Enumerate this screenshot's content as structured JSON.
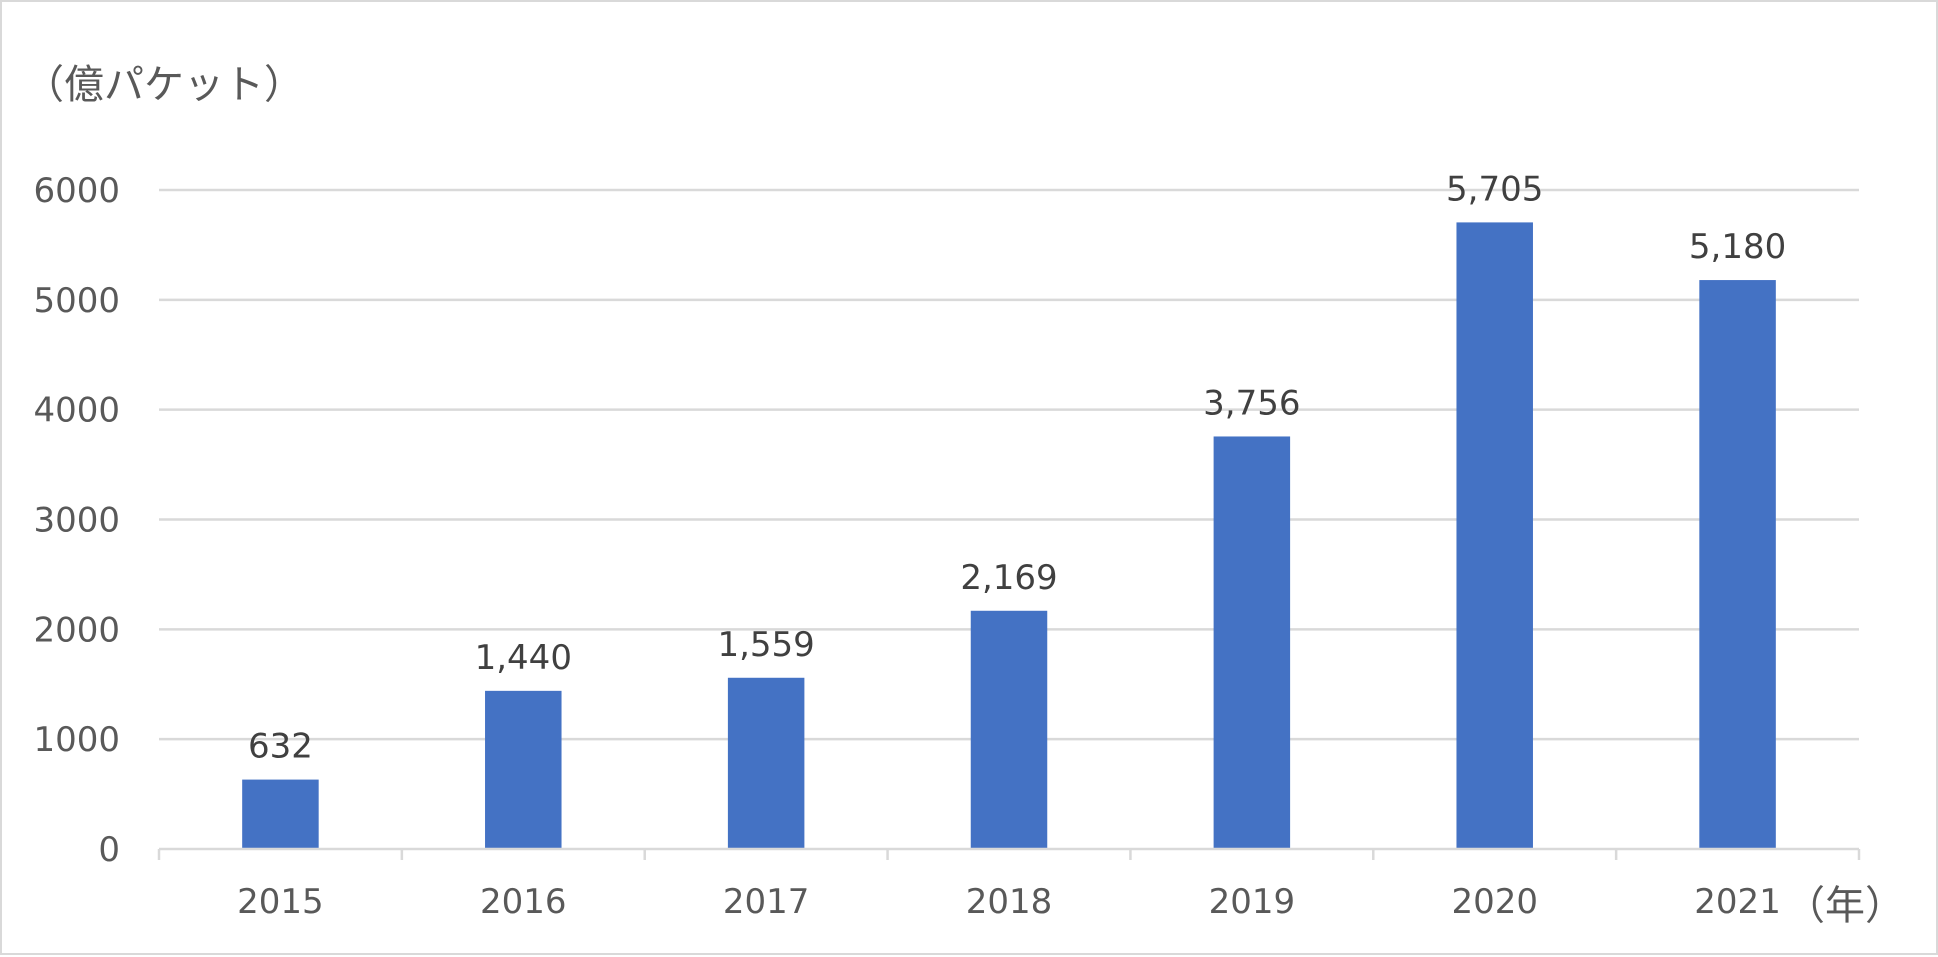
{
  "chart_data": {
    "type": "bar",
    "categories": [
      "2015",
      "2016",
      "2017",
      "2018",
      "2019",
      "2020",
      "2021"
    ],
    "values": [
      632,
      1440,
      1559,
      2169,
      3756,
      5705,
      5180
    ],
    "data_labels": [
      "632",
      "1,440",
      "1,559",
      "2,169",
      "3,756",
      "5,705",
      "5,180"
    ],
    "y_unit_label": "（億パケット）",
    "x_unit_label": "（年）",
    "ylim": [
      0,
      6000
    ],
    "yticks": [
      0,
      1000,
      2000,
      3000,
      4000,
      5000,
      6000
    ],
    "grid": true,
    "legend": "none",
    "bar_color": "#4472C4",
    "grid_color": "#d9d9d9"
  }
}
